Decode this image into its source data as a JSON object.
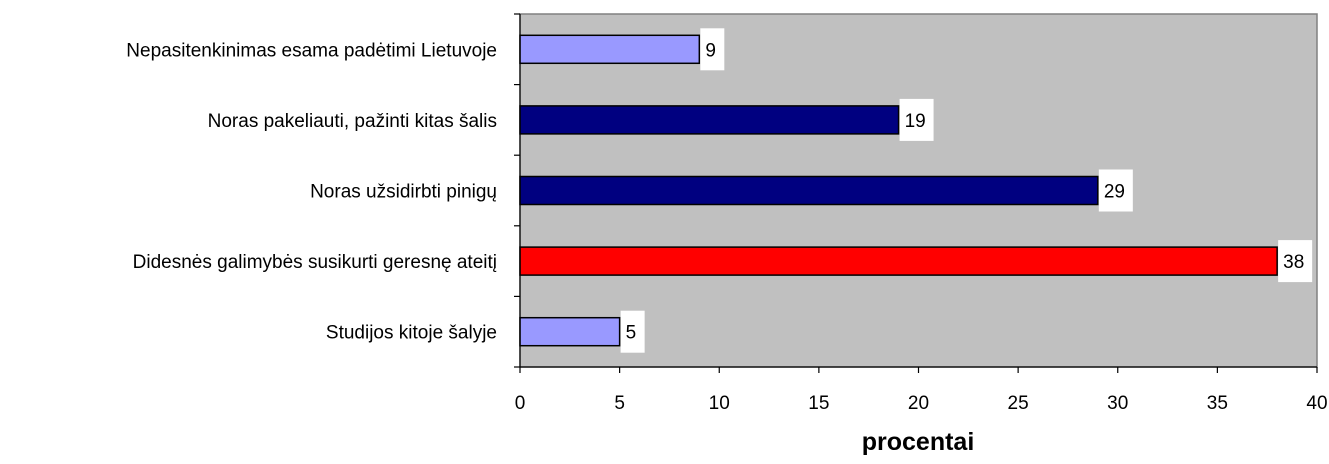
{
  "chart_data": {
    "type": "bar",
    "orientation": "horizontal",
    "categories": [
      "Nepasitenkinimas esama padėtimi Lietuvoje",
      "Noras pakeliauti, pažinti kitas šalis",
      "Noras užsidirbti pinigų",
      "Didesnės galimybės susikurti geresnę ateitį",
      "Studijos kitoje šalyje"
    ],
    "values": [
      9,
      19,
      29,
      38,
      5
    ],
    "data_labels": [
      "9",
      "19",
      "29",
      "38",
      "5"
    ],
    "bar_colors": [
      "#9999ff",
      "#000080",
      "#000080",
      "#ff0000",
      "#9999ff"
    ],
    "xlabel": "procentai",
    "ylabel": "",
    "title": "",
    "xlim": [
      0,
      40
    ],
    "x_ticks": [
      0,
      5,
      10,
      15,
      20,
      25,
      30,
      35,
      40
    ],
    "x_tick_labels": [
      "0",
      "5",
      "10",
      "15",
      "20",
      "25",
      "30",
      "35",
      "40"
    ],
    "plot_background": "#c0c0c0",
    "grid": false,
    "legend": "none"
  }
}
